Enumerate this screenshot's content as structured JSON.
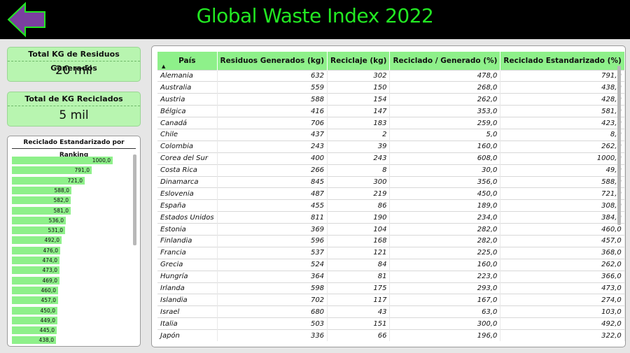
{
  "header": {
    "title": "Global Waste Index 2022"
  },
  "kpis": [
    {
      "label": "Total KG de Residuos Generados",
      "value": "20 mil"
    },
    {
      "label": "Total de KG Reciclados",
      "value": "5 mil"
    }
  ],
  "ranking": {
    "title": "Reciclado Estandarizado por Ranking",
    "max": 1000,
    "values": [
      "1000,0",
      "791,0",
      "721,0",
      "588,0",
      "582,0",
      "581,0",
      "536,0",
      "531,0",
      "492,0",
      "476,0",
      "474,0",
      "473,0",
      "469,0",
      "460,0",
      "457,0",
      "450,0",
      "449,0",
      "445,0",
      "438,0"
    ],
    "numbers": [
      1000,
      791,
      721,
      588,
      582,
      581,
      536,
      531,
      492,
      476,
      474,
      473,
      469,
      460,
      457,
      450,
      449,
      445,
      438
    ]
  },
  "table": {
    "columns": [
      "País",
      "Residuos Generados (kg)",
      "Reciclaje (kg)",
      "Reciclado / Generado (%)",
      "Reciclado Estandarizado (%)"
    ],
    "sort_indicator": "▲",
    "rows": [
      [
        "Alemania",
        "632",
        "302",
        "478,0",
        "791,0"
      ],
      [
        "Australia",
        "559",
        "150",
        "268,0",
        "438,0"
      ],
      [
        "Austria",
        "588",
        "154",
        "262,0",
        "428,0"
      ],
      [
        "Bélgica",
        "416",
        "147",
        "353,0",
        "581,0"
      ],
      [
        "Canadá",
        "706",
        "183",
        "259,0",
        "423,0"
      ],
      [
        "Chile",
        "437",
        "2",
        "5,0",
        "8,0"
      ],
      [
        "Colombia",
        "243",
        "39",
        "160,0",
        "262,0"
      ],
      [
        "Corea del Sur",
        "400",
        "243",
        "608,0",
        "1000,0"
      ],
      [
        "Costa Rica",
        "266",
        "8",
        "30,0",
        "49,0"
      ],
      [
        "Dinamarca",
        "845",
        "300",
        "356,0",
        "588,0"
      ],
      [
        "Eslovenia",
        "487",
        "219",
        "450,0",
        "721,0"
      ],
      [
        "España",
        "455",
        "86",
        "189,0",
        "308,0"
      ],
      [
        "Estados Unidos",
        "811",
        "190",
        "234,0",
        "384,0"
      ],
      [
        "Estonia",
        "369",
        "104",
        "282,0",
        "460,0"
      ],
      [
        "Finlandia",
        "596",
        "168",
        "282,0",
        "457,0"
      ],
      [
        "Francia",
        "537",
        "121",
        "225,0",
        "368,0"
      ],
      [
        "Grecia",
        "524",
        "84",
        "160,0",
        "262,0"
      ],
      [
        "Hungría",
        "364",
        "81",
        "223,0",
        "366,0"
      ],
      [
        "Irlanda",
        "598",
        "175",
        "293,0",
        "473,0"
      ],
      [
        "Islandia",
        "702",
        "117",
        "167,0",
        "274,0"
      ],
      [
        "Israel",
        "680",
        "43",
        "63,0",
        "103,0"
      ],
      [
        "Italia",
        "503",
        "151",
        "300,0",
        "492,0"
      ],
      [
        "Japón",
        "336",
        "66",
        "196,0",
        "322,0"
      ]
    ]
  },
  "colors": {
    "accent_green": "#22e822",
    "bar_green": "#8ef08a",
    "kpi_bg": "#b8f5b0",
    "back_arrow": "#7b3fa0"
  }
}
